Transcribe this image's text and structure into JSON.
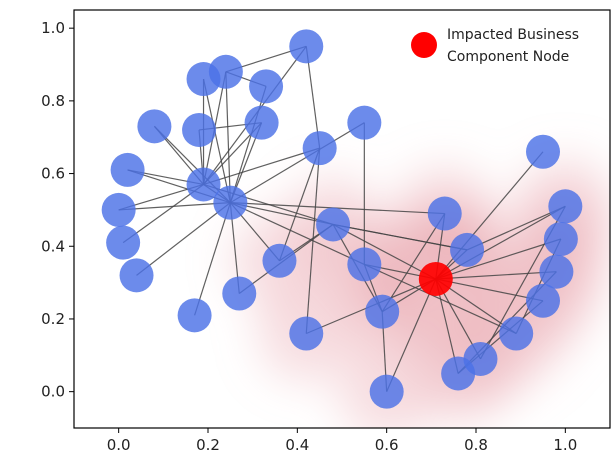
{
  "chart_data": {
    "type": "scatter",
    "title": "",
    "xlabel": "",
    "ylabel": "",
    "xlim": [
      -0.1,
      1.1
    ],
    "ylim": [
      -0.1,
      1.05
    ],
    "xticks": [
      "0.0",
      "0.2",
      "0.4",
      "0.6",
      "0.8",
      "1.0"
    ],
    "yticks": [
      "0.0",
      "0.2",
      "0.4",
      "0.6",
      "0.8",
      "1.0"
    ],
    "grid": false,
    "legend": {
      "placement": "top-right",
      "label_line1": "Impacted Business",
      "label_line2": "Component Node",
      "color": "#ff0000"
    },
    "colors": {
      "normal_node": "#4c72e6",
      "impacted_node": "#ff0000",
      "heat": "#e8a0a8",
      "edge": "#444444"
    },
    "impacted_node_index": 28,
    "nodes": [
      {
        "x": 0.42,
        "y": 0.95
      },
      {
        "x": 0.19,
        "y": 0.86
      },
      {
        "x": 0.24,
        "y": 0.88
      },
      {
        "x": 0.33,
        "y": 0.84
      },
      {
        "x": 0.08,
        "y": 0.73
      },
      {
        "x": 0.18,
        "y": 0.72
      },
      {
        "x": 0.32,
        "y": 0.74
      },
      {
        "x": 0.55,
        "y": 0.74
      },
      {
        "x": 0.45,
        "y": 0.67
      },
      {
        "x": 0.02,
        "y": 0.61
      },
      {
        "x": 0.19,
        "y": 0.57
      },
      {
        "x": 0.25,
        "y": 0.52
      },
      {
        "x": 0.0,
        "y": 0.5
      },
      {
        "x": 0.01,
        "y": 0.41
      },
      {
        "x": 0.04,
        "y": 0.32
      },
      {
        "x": 0.36,
        "y": 0.36
      },
      {
        "x": 0.27,
        "y": 0.27
      },
      {
        "x": 0.17,
        "y": 0.21
      },
      {
        "x": 0.48,
        "y": 0.46
      },
      {
        "x": 0.55,
        "y": 0.35
      },
      {
        "x": 0.59,
        "y": 0.22
      },
      {
        "x": 0.42,
        "y": 0.16
      },
      {
        "x": 0.6,
        "y": 0.0
      },
      {
        "x": 0.73,
        "y": 0.49
      },
      {
        "x": 0.78,
        "y": 0.39
      },
      {
        "x": 0.95,
        "y": 0.66
      },
      {
        "x": 1.0,
        "y": 0.51
      },
      {
        "x": 0.99,
        "y": 0.42
      },
      {
        "x": 0.71,
        "y": 0.31
      },
      {
        "x": 0.98,
        "y": 0.33
      },
      {
        "x": 0.95,
        "y": 0.25
      },
      {
        "x": 0.89,
        "y": 0.16
      },
      {
        "x": 0.81,
        "y": 0.09
      },
      {
        "x": 0.76,
        "y": 0.05
      }
    ],
    "edges": [
      [
        0,
        10
      ],
      [
        0,
        8
      ],
      [
        0,
        2
      ],
      [
        1,
        10
      ],
      [
        2,
        3
      ],
      [
        2,
        11
      ],
      [
        2,
        10
      ],
      [
        3,
        11
      ],
      [
        1,
        11
      ],
      [
        4,
        10
      ],
      [
        4,
        11
      ],
      [
        5,
        10
      ],
      [
        5,
        6
      ],
      [
        6,
        11
      ],
      [
        6,
        10
      ],
      [
        7,
        19
      ],
      [
        7,
        11
      ],
      [
        8,
        10
      ],
      [
        8,
        15
      ],
      [
        8,
        21
      ],
      [
        9,
        10
      ],
      [
        9,
        11
      ],
      [
        12,
        10
      ],
      [
        12,
        11
      ],
      [
        13,
        10
      ],
      [
        14,
        11
      ],
      [
        10,
        11
      ],
      [
        10,
        18
      ],
      [
        11,
        16
      ],
      [
        11,
        15
      ],
      [
        11,
        18
      ],
      [
        11,
        17
      ],
      [
        11,
        19
      ],
      [
        11,
        23
      ],
      [
        15,
        18
      ],
      [
        16,
        18
      ],
      [
        18,
        24
      ],
      [
        18,
        28
      ],
      [
        18,
        20
      ],
      [
        19,
        28
      ],
      [
        19,
        20
      ],
      [
        20,
        23
      ],
      [
        20,
        22
      ],
      [
        20,
        28
      ],
      [
        21,
        28
      ],
      [
        22,
        28
      ],
      [
        23,
        28
      ],
      [
        24,
        28
      ],
      [
        24,
        26
      ],
      [
        25,
        28
      ],
      [
        26,
        28
      ],
      [
        27,
        28
      ],
      [
        29,
        28
      ],
      [
        30,
        28
      ],
      [
        31,
        28
      ],
      [
        32,
        28
      ],
      [
        33,
        28
      ],
      [
        26,
        32
      ],
      [
        27,
        31
      ],
      [
        29,
        33
      ],
      [
        30,
        33
      ],
      [
        19,
        31
      ],
      [
        18,
        24
      ]
    ]
  }
}
